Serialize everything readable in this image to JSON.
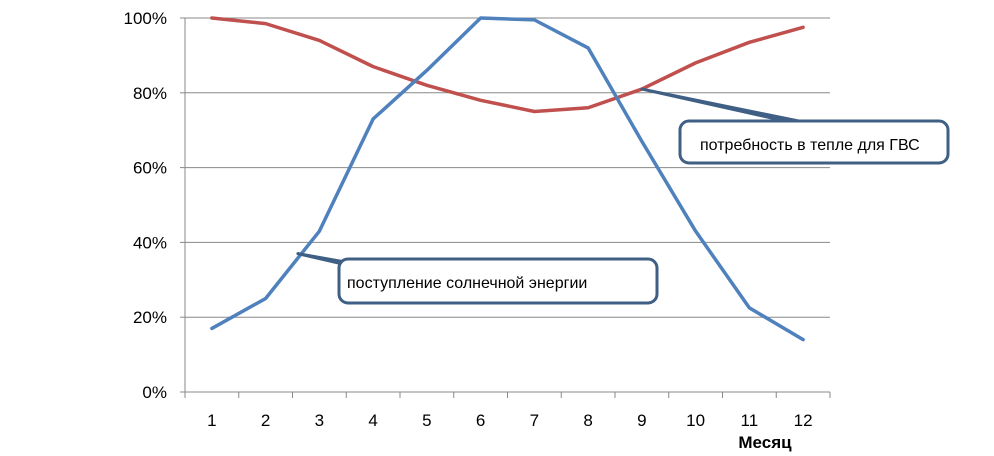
{
  "chart_data": {
    "type": "line",
    "x": [
      1,
      2,
      3,
      4,
      5,
      6,
      7,
      8,
      9,
      10,
      11,
      12
    ],
    "xlabel": "Месяц",
    "ylabel": "",
    "ylim": [
      0,
      100
    ],
    "yticks": [
      "0%",
      "20%",
      "40%",
      "60%",
      "80%",
      "100%"
    ],
    "yticks_values": [
      0,
      20,
      40,
      60,
      80,
      100
    ],
    "grid": "horizontal",
    "series": [
      {
        "color": "#c0504d",
        "values": [
          100,
          98.5,
          94,
          87,
          82,
          78,
          75,
          76,
          81,
          88,
          93.5,
          97.5
        ]
      },
      {
        "color": "#4f81bd",
        "values": [
          17,
          25,
          43,
          73,
          86,
          100,
          99.5,
          92,
          67,
          43,
          22.5,
          14
        ]
      }
    ],
    "annotations": [
      {
        "text": "потребность в тепле для ГВС",
        "series": 0,
        "x": 9,
        "y": 81
      },
      {
        "text": "поступление солнечной энергии",
        "series": 1,
        "x": 2.6,
        "y": 37
      }
    ]
  }
}
